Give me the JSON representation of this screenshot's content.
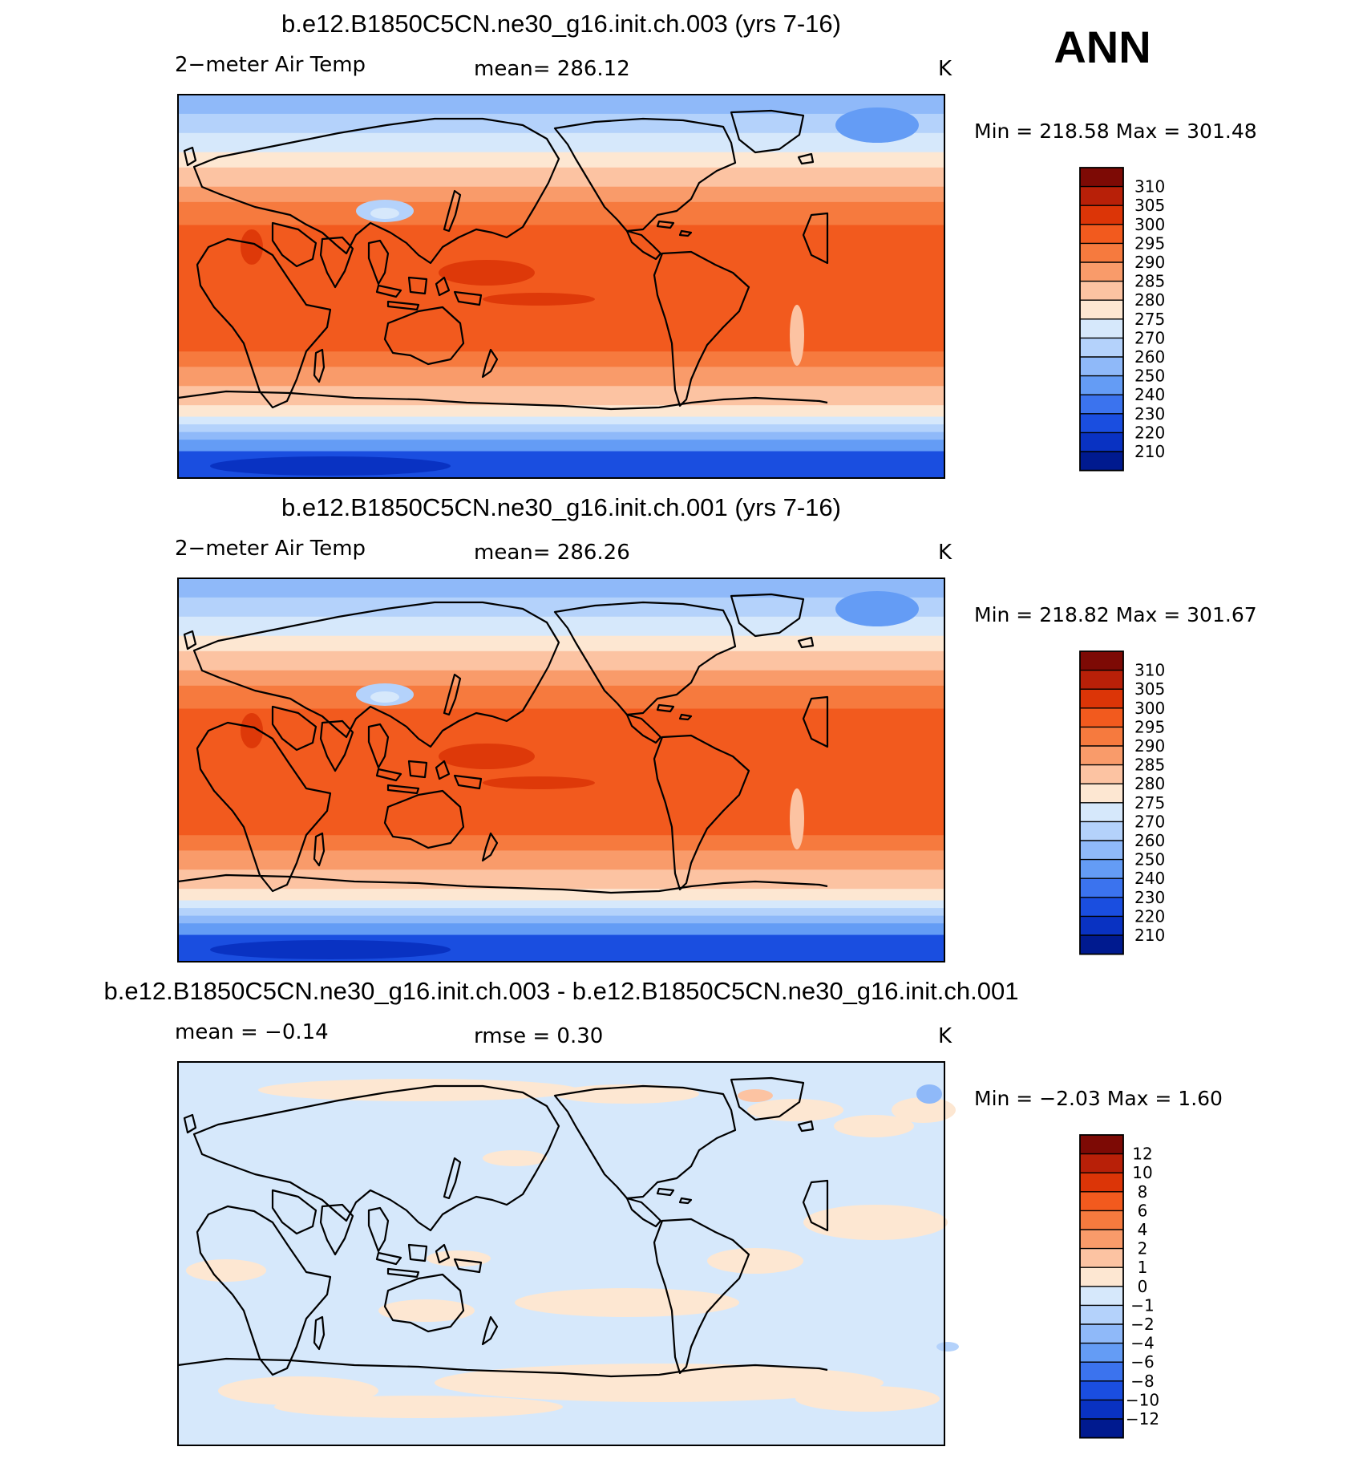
{
  "season": "ANN",
  "chart_data": [
    {
      "type": "heatmap",
      "title": "b.e12.B1850C5CN.ne30_g16.init.ch.003 (yrs 7-16)",
      "left_label": "2−meter Air Temp",
      "center_label": "mean=  286.12",
      "right_label": "K",
      "min_max_text": "Min  =  218.58  Max  =  301.48",
      "stats": {
        "mean": 286.12,
        "min": 218.58,
        "max": 301.48,
        "units": "K"
      },
      "levels": [
        "310",
        "305",
        "300",
        "295",
        "290",
        "285",
        "280",
        "275",
        "270",
        "260",
        "250",
        "240",
        "230",
        "220",
        "210"
      ],
      "colors": [
        "#7d0a05",
        "#b82008",
        "#dc3507",
        "#f25a1e",
        "#f67a3e",
        "#f99b6a",
        "#fcc3a2",
        "#fde7d2",
        "#d6e8fb",
        "#b4d2fb",
        "#8fb9f9",
        "#649cf5",
        "#3b73ee",
        "#1a4ee0",
        "#0932c2",
        "#001a8f"
      ]
    },
    {
      "type": "heatmap",
      "title": "b.e12.B1850C5CN.ne30_g16.init.ch.001 (yrs 7-16)",
      "left_label": "2−meter Air Temp",
      "center_label": "mean=  286.26",
      "right_label": "K",
      "min_max_text": "Min  =  218.82  Max  =  301.67",
      "stats": {
        "mean": 286.26,
        "min": 218.82,
        "max": 301.67,
        "units": "K"
      },
      "levels": [
        "310",
        "305",
        "300",
        "295",
        "290",
        "285",
        "280",
        "275",
        "270",
        "260",
        "250",
        "240",
        "230",
        "220",
        "210"
      ],
      "colors": [
        "#7d0a05",
        "#b82008",
        "#dc3507",
        "#f25a1e",
        "#f67a3e",
        "#f99b6a",
        "#fcc3a2",
        "#fde7d2",
        "#d6e8fb",
        "#b4d2fb",
        "#8fb9f9",
        "#649cf5",
        "#3b73ee",
        "#1a4ee0",
        "#0932c2",
        "#001a8f"
      ]
    },
    {
      "type": "heatmap",
      "title": "b.e12.B1850C5CN.ne30_g16.init.ch.003 - b.e12.B1850C5CN.ne30_g16.init.ch.001",
      "left_label": "mean  =    −0.14",
      "center_label": "rmse  =     0.30",
      "right_label": "K",
      "min_max_text": "Min  =    −2.03  Max  =     1.60",
      "stats": {
        "mean": -0.14,
        "rmse": 0.3,
        "min": -2.03,
        "max": 1.6,
        "units": "K"
      },
      "levels": [
        "12",
        "10",
        "8",
        "6",
        "4",
        "2",
        "1",
        "0",
        "−1",
        "−2",
        "−4",
        "−6",
        "−8",
        "−10",
        "−12"
      ],
      "colors": [
        "#7d0a05",
        "#b82008",
        "#dc3507",
        "#f25a1e",
        "#f67a3e",
        "#f99b6a",
        "#fcc3a2",
        "#fde7d2",
        "#d6e8fb",
        "#b4d2fb",
        "#8fb9f9",
        "#649cf5",
        "#3b73ee",
        "#1a4ee0",
        "#0932c2",
        "#001a8f"
      ]
    }
  ]
}
